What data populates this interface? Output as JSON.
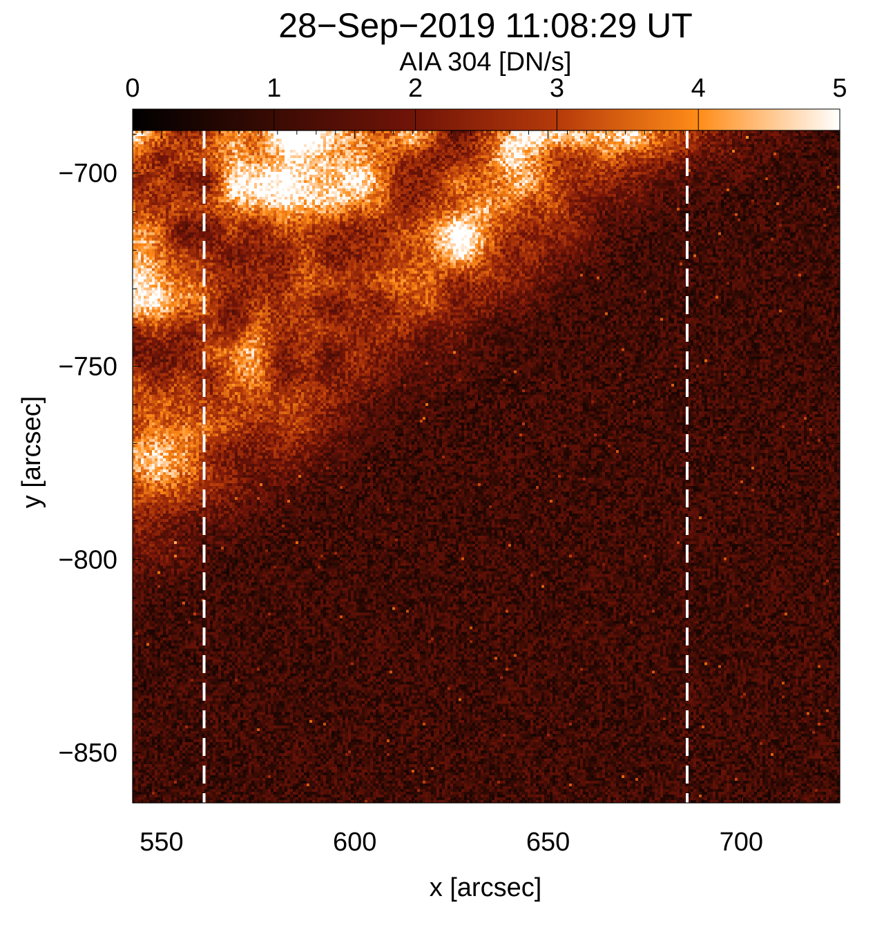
{
  "title": "28−Sep−2019 11:08:29 UT",
  "colorbar": {
    "label": "AIA 304 [DN/s]",
    "ticks": [
      "0",
      "1",
      "2",
      "3",
      "4",
      "5"
    ],
    "range": [
      0,
      5
    ]
  },
  "chart_data": {
    "type": "heatmap",
    "title": "28−Sep−2019 11:08:29 UT",
    "xlabel": "x [arcsec]",
    "ylabel": "y [arcsec]",
    "xlim": [
      542.5,
      725.5
    ],
    "ylim": [
      -863,
      -689
    ],
    "x_ticks": [
      550,
      600,
      650,
      700
    ],
    "x_tick_labels": [
      "550",
      "600",
      "650",
      "700"
    ],
    "y_ticks": [
      -700,
      -750,
      -800,
      -850
    ],
    "y_tick_labels": [
      "−700",
      "−750",
      "−800",
      "−850"
    ],
    "colormap": "SDO AIA 304 (black-red-orange-white)",
    "value_range": [
      0,
      5
    ],
    "value_unit": "DN/s",
    "reference_lines": [
      {
        "orientation": "vertical",
        "x": 561,
        "style": "dashed",
        "color": "#ffffff"
      },
      {
        "orientation": "vertical",
        "x": 686,
        "style": "dashed",
        "color": "#ffffff"
      }
    ],
    "regions": [
      {
        "description": "bright emission",
        "location": "upper-left, above diagonal boundary"
      },
      {
        "description": "faint emission",
        "location": "lower-right"
      }
    ]
  }
}
